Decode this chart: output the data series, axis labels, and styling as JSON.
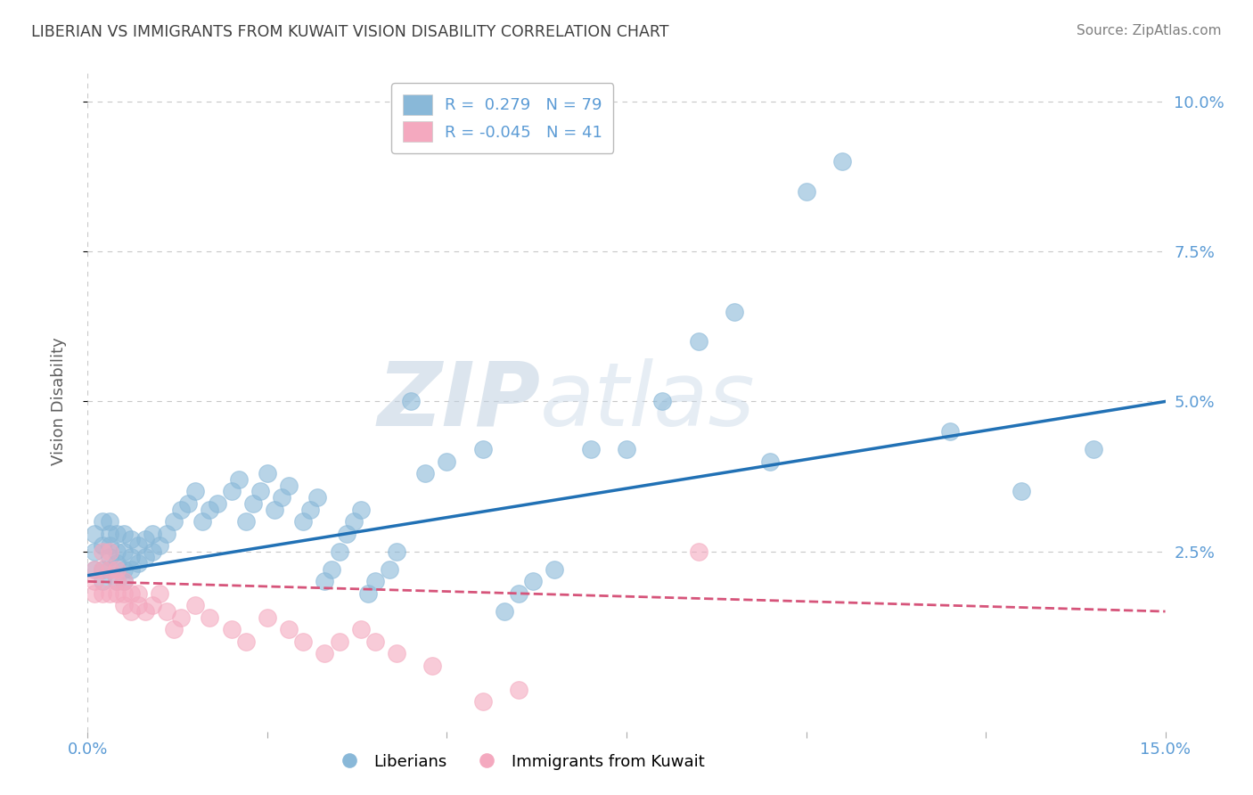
{
  "title": "LIBERIAN VS IMMIGRANTS FROM KUWAIT VISION DISABILITY CORRELATION CHART",
  "source": "Source: ZipAtlas.com",
  "ylabel": "Vision Disability",
  "xlim": [
    0.0,
    0.15
  ],
  "ylim": [
    -0.005,
    0.105
  ],
  "blue_color": "#89b8d8",
  "pink_color": "#f4a9bf",
  "blue_line_color": "#2171b5",
  "pink_line_color": "#d6547a",
  "R_blue": 0.279,
  "N_blue": 79,
  "R_pink": -0.045,
  "N_pink": 41,
  "legend_label_blue": "Liberians",
  "legend_label_pink": "Immigrants from Kuwait",
  "watermark_zip": "ZIP",
  "watermark_atlas": "atlas",
  "background_color": "#ffffff",
  "grid_color": "#c8c8c8",
  "title_color": "#404040",
  "axis_label_color": "#5b9bd5",
  "blue_scatter_x": [
    0.001,
    0.001,
    0.001,
    0.002,
    0.002,
    0.002,
    0.002,
    0.003,
    0.003,
    0.003,
    0.003,
    0.003,
    0.004,
    0.004,
    0.004,
    0.004,
    0.005,
    0.005,
    0.005,
    0.005,
    0.006,
    0.006,
    0.006,
    0.007,
    0.007,
    0.008,
    0.008,
    0.009,
    0.009,
    0.01,
    0.011,
    0.012,
    0.013,
    0.014,
    0.015,
    0.016,
    0.017,
    0.018,
    0.02,
    0.021,
    0.022,
    0.023,
    0.024,
    0.025,
    0.026,
    0.027,
    0.028,
    0.03,
    0.031,
    0.032,
    0.033,
    0.034,
    0.035,
    0.036,
    0.037,
    0.038,
    0.039,
    0.04,
    0.042,
    0.043,
    0.045,
    0.047,
    0.05,
    0.055,
    0.058,
    0.06,
    0.062,
    0.065,
    0.07,
    0.075,
    0.08,
    0.085,
    0.09,
    0.095,
    0.1,
    0.105,
    0.12,
    0.13,
    0.14
  ],
  "blue_scatter_y": [
    0.022,
    0.025,
    0.028,
    0.02,
    0.022,
    0.026,
    0.03,
    0.022,
    0.024,
    0.026,
    0.028,
    0.03,
    0.02,
    0.023,
    0.025,
    0.028,
    0.02,
    0.022,
    0.025,
    0.028,
    0.022,
    0.024,
    0.027,
    0.023,
    0.026,
    0.024,
    0.027,
    0.025,
    0.028,
    0.026,
    0.028,
    0.03,
    0.032,
    0.033,
    0.035,
    0.03,
    0.032,
    0.033,
    0.035,
    0.037,
    0.03,
    0.033,
    0.035,
    0.038,
    0.032,
    0.034,
    0.036,
    0.03,
    0.032,
    0.034,
    0.02,
    0.022,
    0.025,
    0.028,
    0.03,
    0.032,
    0.018,
    0.02,
    0.022,
    0.025,
    0.05,
    0.038,
    0.04,
    0.042,
    0.015,
    0.018,
    0.02,
    0.022,
    0.042,
    0.042,
    0.05,
    0.06,
    0.065,
    0.04,
    0.085,
    0.09,
    0.045,
    0.035,
    0.042
  ],
  "pink_scatter_x": [
    0.001,
    0.001,
    0.001,
    0.002,
    0.002,
    0.002,
    0.003,
    0.003,
    0.003,
    0.004,
    0.004,
    0.004,
    0.005,
    0.005,
    0.005,
    0.006,
    0.006,
    0.007,
    0.007,
    0.008,
    0.009,
    0.01,
    0.011,
    0.012,
    0.013,
    0.015,
    0.017,
    0.02,
    0.022,
    0.025,
    0.028,
    0.03,
    0.033,
    0.035,
    0.038,
    0.04,
    0.043,
    0.048,
    0.055,
    0.06,
    0.085
  ],
  "pink_scatter_y": [
    0.02,
    0.022,
    0.018,
    0.018,
    0.022,
    0.025,
    0.018,
    0.022,
    0.025,
    0.018,
    0.02,
    0.022,
    0.016,
    0.018,
    0.02,
    0.015,
    0.018,
    0.016,
    0.018,
    0.015,
    0.016,
    0.018,
    0.015,
    0.012,
    0.014,
    0.016,
    0.014,
    0.012,
    0.01,
    0.014,
    0.012,
    0.01,
    0.008,
    0.01,
    0.012,
    0.01,
    0.008,
    0.006,
    0.0,
    0.002,
    0.025
  ]
}
